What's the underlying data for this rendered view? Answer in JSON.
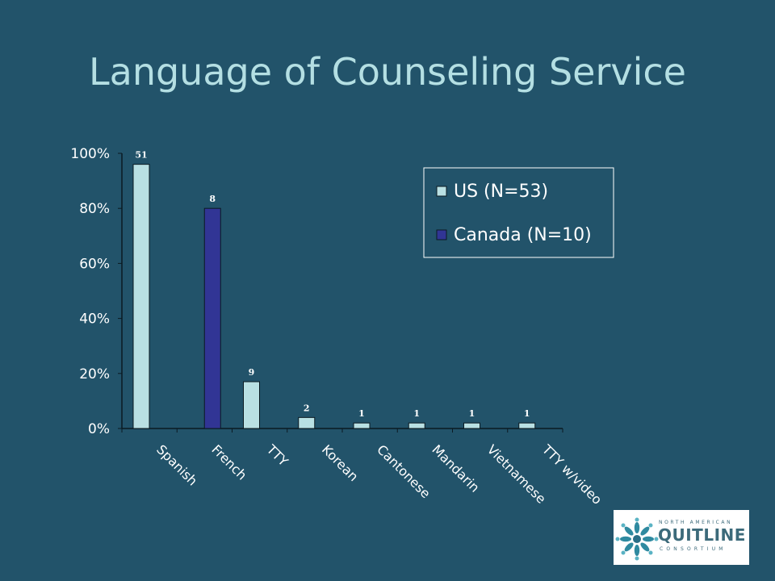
{
  "slide": {
    "title": "Language of Counseling Service"
  },
  "colors": {
    "background": "#22536a",
    "us": "#b9e0e3",
    "canada": "#313595",
    "text": "#ffffff",
    "title": "#b4dfe3"
  },
  "chart_data": {
    "type": "bar",
    "categories": [
      "Spanish",
      "French",
      "TTY",
      "Korean",
      "Cantonese",
      "Mandarin",
      "Vietnamese",
      "TTY w/video"
    ],
    "ylim": [
      0,
      100
    ],
    "yticks": [
      "0%",
      "20%",
      "40%",
      "60%",
      "80%",
      "100%"
    ],
    "yticks_values": [
      0,
      20,
      40,
      60,
      80,
      100
    ],
    "legend_position": "top-right",
    "series": [
      {
        "name": "US (N=53)",
        "color": "#b9e0e3",
        "values": [
          96,
          null,
          17,
          4,
          2,
          2,
          2,
          2
        ],
        "labels": [
          "51",
          "",
          "9",
          "2",
          "1",
          "1",
          "1",
          "1"
        ]
      },
      {
        "name": "Canada (N=10)",
        "color": "#313595",
        "values": [
          null,
          80,
          null,
          null,
          null,
          null,
          null,
          null
        ],
        "labels": [
          "",
          "8",
          "",
          "",
          "",
          "",
          "",
          ""
        ]
      }
    ]
  },
  "logo": {
    "line1": "NORTH AMERICAN",
    "line2": "QUITLINE",
    "line3": "CONSORTIUM"
  }
}
